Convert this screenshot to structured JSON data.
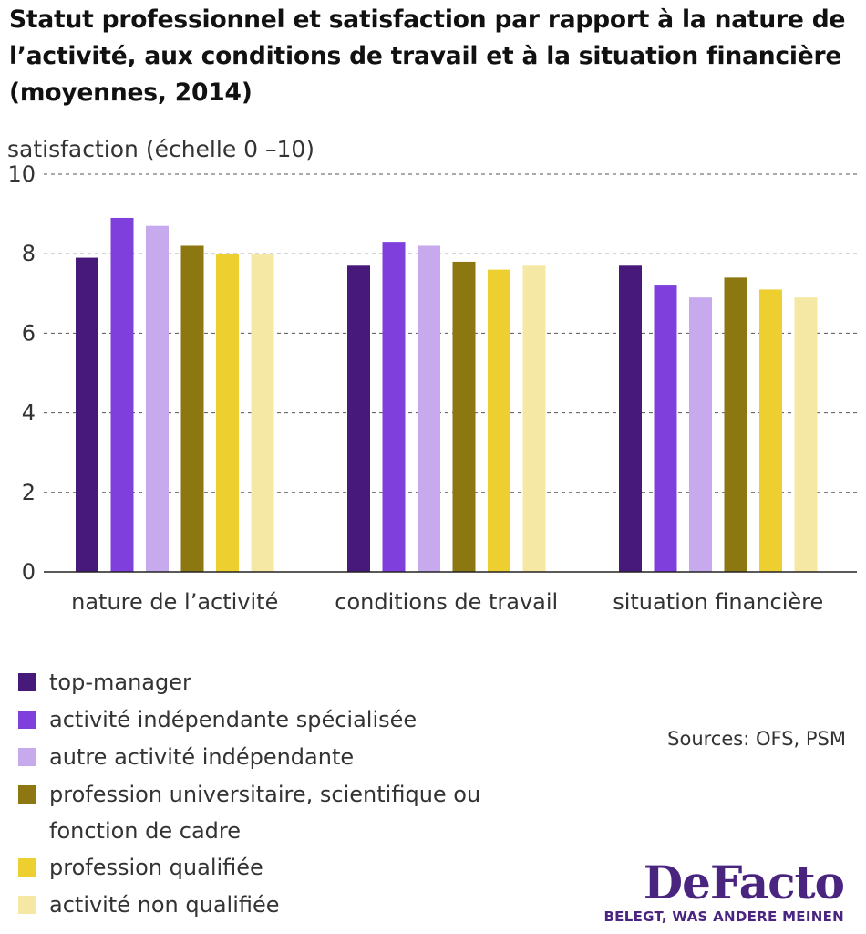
{
  "title": "Statut professionnel et satisfaction par rapport à la nature de l’activité, aux conditions de travail et à la situation financière (moyennes, 2014)",
  "sources": "Sources: OFS, PSM",
  "logo": {
    "name": "DeFacto",
    "tagline": "BELEGT, WAS ANDERE MEINEN"
  },
  "chart_data": {
    "type": "bar",
    "title": "Statut professionnel et satisfaction par rapport à la nature de l’activité, aux conditions de travail et à la situation financière (moyennes, 2014)",
    "ylabel": "satisfaction (échelle 0 –10)",
    "xlabel": "",
    "ylim": [
      0,
      10
    ],
    "yticks": [
      0,
      2,
      4,
      6,
      8,
      10
    ],
    "grid": "horizontal dashed",
    "legend_position": "bottom-left",
    "categories": [
      "nature de l’activité",
      "conditions de travail",
      "situation financière"
    ],
    "series": [
      {
        "name": "top-manager",
        "color": "#46197a",
        "values": [
          7.9,
          7.7,
          7.7
        ]
      },
      {
        "name": "activité indépendante spécialisée",
        "color": "#7f3fdc",
        "values": [
          8.9,
          8.3,
          7.2
        ]
      },
      {
        "name": "autre activité indépendante",
        "color": "#c7aaee",
        "values": [
          8.7,
          8.2,
          6.9
        ]
      },
      {
        "name": "profession universitaire, scientifique ou fonction de cadre",
        "color": "#8c7710",
        "values": [
          8.2,
          7.8,
          7.4
        ]
      },
      {
        "name": "profession qualifiée",
        "color": "#edcf30",
        "values": [
          8.0,
          7.6,
          7.1
        ]
      },
      {
        "name": "activité non qualifiée",
        "color": "#f5e8a4",
        "values": [
          8.0,
          7.7,
          6.9
        ]
      }
    ]
  }
}
